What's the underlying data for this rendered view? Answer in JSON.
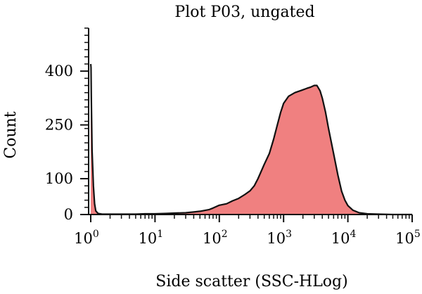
{
  "chart_data": {
    "type": "area",
    "title": "Plot P03, ungated",
    "xlabel": "Side scatter (SSC-HLog)",
    "ylabel": "Count",
    "x_scale": "log",
    "xlim": [
      1,
      100000
    ],
    "ylim": [
      0,
      520
    ],
    "x_ticks": [
      {
        "base": "10",
        "exp": "0",
        "value": 1
      },
      {
        "base": "10",
        "exp": "1",
        "value": 10
      },
      {
        "base": "10",
        "exp": "2",
        "value": 100
      },
      {
        "base": "10",
        "exp": "3",
        "value": 1000
      },
      {
        "base": "10",
        "exp": "4",
        "value": 10000
      },
      {
        "base": "10",
        "exp": "5",
        "value": 100000
      }
    ],
    "y_ticks": [
      {
        "label": "0",
        "value": 0
      },
      {
        "label": "100",
        "value": 100
      },
      {
        "label": "250",
        "value": 250
      },
      {
        "label": "400",
        "value": 400
      }
    ],
    "grid": false,
    "legend": "none",
    "fill_color": "#f08080",
    "line_color": "#111111",
    "series": [
      {
        "x": [
          1.0,
          1.01,
          1.02,
          1.05,
          1.1,
          1.15,
          1.2,
          1.3,
          1.5,
          2,
          3,
          5,
          7,
          10,
          15,
          20,
          30,
          40,
          50,
          70,
          80,
          100,
          130,
          160,
          200,
          250,
          300,
          350,
          400,
          500,
          600,
          700,
          800,
          900,
          1000,
          1200,
          1500,
          1800,
          2000,
          2300,
          2600,
          3000,
          3300,
          3700,
          4000,
          4500,
          5000,
          6000,
          7000,
          8000,
          9000,
          10000,
          12000,
          15000,
          20000,
          30000,
          50000,
          100000
        ],
        "y": [
          420,
          410,
          330,
          180,
          80,
          30,
          10,
          3,
          1,
          1,
          1,
          1,
          2,
          2,
          3,
          4,
          5,
          7,
          9,
          14,
          18,
          26,
          30,
          38,
          45,
          56,
          66,
          80,
          100,
          140,
          170,
          210,
          250,
          285,
          310,
          330,
          340,
          345,
          348,
          352,
          355,
          360,
          360,
          345,
          325,
          285,
          240,
          170,
          110,
          65,
          40,
          25,
          12,
          5,
          2,
          1,
          0,
          0
        ]
      }
    ]
  }
}
